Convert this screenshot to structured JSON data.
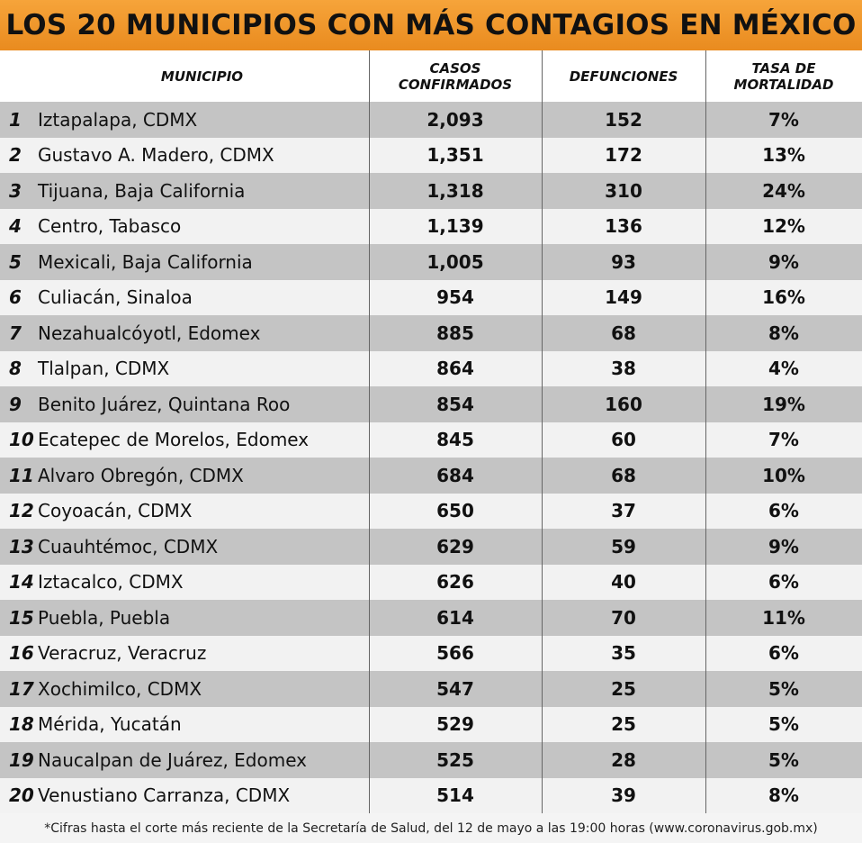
{
  "title": "LOS 20 MUNICIPIOS CON MÁS CONTAGIOS EN MÉXICO",
  "columns": {
    "municipio": "MUNICIPIO",
    "casos": "CASOS\nCONFIRMADOS",
    "defunciones": "DEFUNCIONES",
    "tasa": "TASA DE\nMORTALIDAD"
  },
  "footnote": "*Cifras hasta el corte más reciente de la Secretaría de Salud, del 12 de mayo a las 19:00 horas (www.coronavirus.gob.mx)",
  "chart_data": {
    "type": "table",
    "title": "LOS 20 MUNICIPIOS CON MÁS CONTAGIOS EN MÉXICO",
    "columns": [
      "MUNICIPIO",
      "CASOS CONFIRMADOS",
      "DEFUNCIONES",
      "TASA DE MORTALIDAD"
    ],
    "rows": [
      {
        "rank": "1",
        "municipio": "Iztapalapa, CDMX",
        "casos": "2,093",
        "defunciones": "152",
        "tasa": "7%"
      },
      {
        "rank": "2",
        "municipio": "Gustavo A. Madero, CDMX",
        "casos": "1,351",
        "defunciones": "172",
        "tasa": "13%"
      },
      {
        "rank": "3",
        "municipio": "Tijuana, Baja California",
        "casos": "1,318",
        "defunciones": "310",
        "tasa": "24%"
      },
      {
        "rank": "4",
        "municipio": "Centro, Tabasco",
        "casos": "1,139",
        "defunciones": "136",
        "tasa": "12%"
      },
      {
        "rank": "5",
        "municipio": "Mexicali, Baja California",
        "casos": "1,005",
        "defunciones": "93",
        "tasa": "9%"
      },
      {
        "rank": "6",
        "municipio": "Culiacán, Sinaloa",
        "casos": "954",
        "defunciones": "149",
        "tasa": "16%"
      },
      {
        "rank": "7",
        "municipio": "Nezahualcóyotl, Edomex",
        "casos": "885",
        "defunciones": "68",
        "tasa": "8%"
      },
      {
        "rank": "8",
        "municipio": "Tlalpan, CDMX",
        "casos": "864",
        "defunciones": "38",
        "tasa": "4%"
      },
      {
        "rank": "9",
        "municipio": "Benito Juárez, Quintana Roo",
        "casos": "854",
        "defunciones": "160",
        "tasa": "19%"
      },
      {
        "rank": "10",
        "municipio": "Ecatepec de Morelos, Edomex",
        "casos": "845",
        "defunciones": "60",
        "tasa": "7%"
      },
      {
        "rank": "11",
        "municipio": "Alvaro Obregón, CDMX",
        "casos": "684",
        "defunciones": "68",
        "tasa": "10%"
      },
      {
        "rank": "12",
        "municipio": "Coyoacán, CDMX",
        "casos": "650",
        "defunciones": "37",
        "tasa": "6%"
      },
      {
        "rank": "13",
        "municipio": "Cuauhtémoc, CDMX",
        "casos": "629",
        "defunciones": "59",
        "tasa": "9%"
      },
      {
        "rank": "14",
        "municipio": "Iztacalco, CDMX",
        "casos": "626",
        "defunciones": "40",
        "tasa": "6%"
      },
      {
        "rank": "15",
        "municipio": "Puebla, Puebla",
        "casos": "614",
        "defunciones": "70",
        "tasa": "11%"
      },
      {
        "rank": "16",
        "municipio": "Veracruz, Veracruz",
        "casos": "566",
        "defunciones": "35",
        "tasa": "6%"
      },
      {
        "rank": "17",
        "municipio": "Xochimilco, CDMX",
        "casos": "547",
        "defunciones": "25",
        "tasa": "5%"
      },
      {
        "rank": "18",
        "municipio": "Mérida, Yucatán",
        "casos": "529",
        "defunciones": "25",
        "tasa": "5%"
      },
      {
        "rank": "19",
        "municipio": "Naucalpan de Juárez, Edomex",
        "casos": "525",
        "defunciones": "28",
        "tasa": "5%"
      },
      {
        "rank": "20",
        "municipio": "Venustiano Carranza, CDMX",
        "casos": "514",
        "defunciones": "39",
        "tasa": "8%"
      }
    ]
  },
  "colors": {
    "title_orange": "#f0962c",
    "row_dark": "#c4c4c4",
    "row_light": "#f2f2f2"
  }
}
